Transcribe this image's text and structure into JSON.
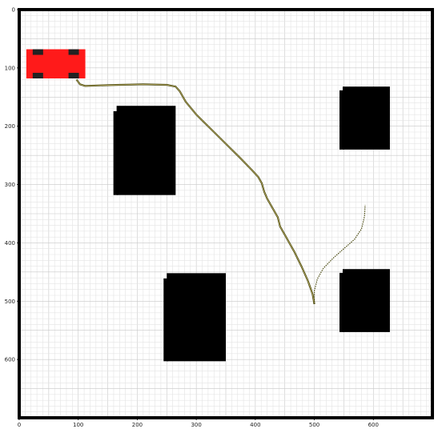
{
  "chart_data": {
    "type": "scatter",
    "title": "",
    "xlabel": "",
    "ylabel": "",
    "xlim": [
      0,
      700
    ],
    "ylim": [
      700,
      0
    ],
    "grid": true,
    "grid_minor_step": 10,
    "grid_major_step": 50,
    "x_ticks": [
      "0",
      "100",
      "200",
      "300",
      "400",
      "500",
      "600"
    ],
    "x_tick_values": [
      0,
      100,
      200,
      300,
      400,
      500,
      600
    ],
    "y_ticks": [
      "0",
      "100",
      "200",
      "300",
      "400",
      "500",
      "600"
    ],
    "y_tick_values": [
      0,
      100,
      200,
      300,
      400,
      500,
      600
    ],
    "obstacles": [
      {
        "name": "obstacle-1",
        "x0": 165,
        "x1": 265,
        "y0": 165,
        "y1": 318
      },
      {
        "name": "obstacle-2",
        "x0": 548,
        "x1": 628,
        "y0": 132,
        "y1": 240
      },
      {
        "name": "obstacle-3",
        "x0": 250,
        "x1": 350,
        "y0": 452,
        "y1": 603
      },
      {
        "name": "obstacle-4",
        "x0": 548,
        "x1": 628,
        "y0": 445,
        "y1": 553
      }
    ],
    "vehicle": {
      "x0": 12,
      "x1": 112,
      "y0": 68,
      "y1": 118,
      "color": "#ff1a1a",
      "wheel_color": "#222222"
    },
    "path_color": "#4a4a12",
    "path": [
      [
        97,
        120
      ],
      [
        103,
        128
      ],
      [
        112,
        131
      ],
      [
        135,
        130
      ],
      [
        170,
        129
      ],
      [
        210,
        128
      ],
      [
        250,
        129
      ],
      [
        265,
        132
      ],
      [
        272,
        140
      ],
      [
        282,
        158
      ],
      [
        300,
        180
      ],
      [
        325,
        205
      ],
      [
        350,
        230
      ],
      [
        375,
        255
      ],
      [
        395,
        276
      ],
      [
        405,
        287
      ],
      [
        411,
        298
      ],
      [
        415,
        312
      ],
      [
        420,
        324
      ],
      [
        429,
        340
      ],
      [
        438,
        356
      ],
      [
        442,
        372
      ],
      [
        452,
        390
      ],
      [
        466,
        415
      ],
      [
        478,
        440
      ],
      [
        489,
        465
      ],
      [
        497,
        488
      ],
      [
        500,
        505
      ]
    ],
    "reverse_path": [
      [
        500,
        505
      ],
      [
        500,
        482
      ],
      [
        505,
        462
      ],
      [
        515,
        444
      ],
      [
        532,
        426
      ],
      [
        550,
        410
      ],
      [
        568,
        394
      ],
      [
        580,
        376
      ],
      [
        585,
        355
      ],
      [
        586,
        335
      ]
    ]
  }
}
